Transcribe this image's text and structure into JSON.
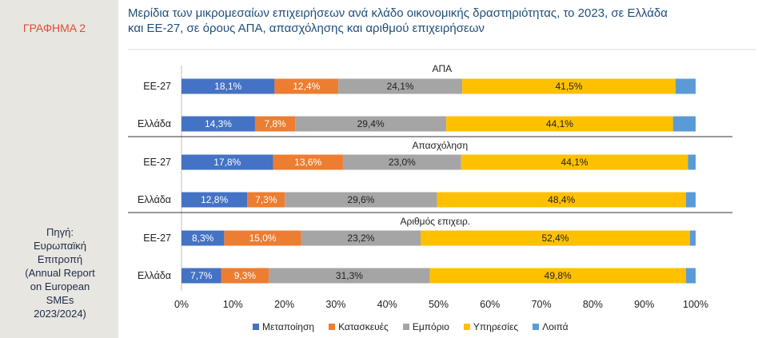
{
  "sidebar": {
    "label": "ΓΡΑΦΗΜΑ 2",
    "source_lines": [
      "Πηγή:",
      "Ευρωπαϊκή",
      "Επιτροπή",
      "(Annual Report",
      "on European",
      "SMEs",
      "2023/2024)"
    ]
  },
  "title_lines": [
    "Μερίδια των μικρομεσαίων επιχειρήσεων ανά κλάδο οικονομικής δραστηριότητας, το 2023,  σε Ελλάδα",
    "και ΕΕ-27, σε όρους ΑΠΑ, απασχόλησης και αριθμού επιχειρήσεων"
  ],
  "chart_data": {
    "type": "bar",
    "orientation": "horizontal",
    "stacked": true,
    "xlim": [
      0,
      100
    ],
    "x_ticks": [
      "0%",
      "10%",
      "20%",
      "30%",
      "40%",
      "50%",
      "60%",
      "70%",
      "80%",
      "90%",
      "100%"
    ],
    "legend_position": "bottom",
    "series_names": [
      "Μεταποίηση",
      "Κατασκευές",
      "Εμπόριο",
      "Υπηρεσίες",
      "Λοιπά"
    ],
    "colors": [
      "#4472c4",
      "#ed7d31",
      "#a5a5a5",
      "#ffc000",
      "#5b9bd5"
    ],
    "groups": [
      {
        "name": "ΑΠΑ",
        "rows": [
          {
            "label": "ΕΕ-27",
            "values": [
              18.1,
              12.4,
              24.1,
              41.5,
              3.9
            ],
            "labels": [
              "18,1%",
              "12,4%",
              "24,1%",
              "41,5%",
              ""
            ]
          },
          {
            "label": "Ελλάδα",
            "values": [
              14.3,
              7.8,
              29.4,
              44.1,
              4.4
            ],
            "labels": [
              "14,3%",
              "7,8%",
              "29,4%",
              "44,1%",
              ""
            ]
          }
        ]
      },
      {
        "name": "Απασχόληση",
        "rows": [
          {
            "label": "ΕΕ-27",
            "values": [
              17.8,
              13.6,
              23.0,
              44.1,
              1.5
            ],
            "labels": [
              "17,8%",
              "13,6%",
              "23,0%",
              "44,1%",
              ""
            ]
          },
          {
            "label": "Ελλάδα",
            "values": [
              12.8,
              7.3,
              29.6,
              48.4,
              1.9
            ],
            "labels": [
              "12,8%",
              "7,3%",
              "29,6%",
              "48,4%",
              ""
            ]
          }
        ]
      },
      {
        "name": "Αριθμός επιχειρ.",
        "rows": [
          {
            "label": "ΕΕ-27",
            "values": [
              8.3,
              15.0,
              23.2,
              52.4,
              1.1
            ],
            "labels": [
              "8,3%",
              "15,0%",
              "23,2%",
              "52,4%",
              ""
            ]
          },
          {
            "label": "Ελλάδα",
            "values": [
              7.7,
              9.3,
              31.3,
              49.8,
              1.9
            ],
            "labels": [
              "7,7%",
              "9,3%",
              "31,3%",
              "49,8%",
              ""
            ]
          }
        ]
      }
    ]
  }
}
